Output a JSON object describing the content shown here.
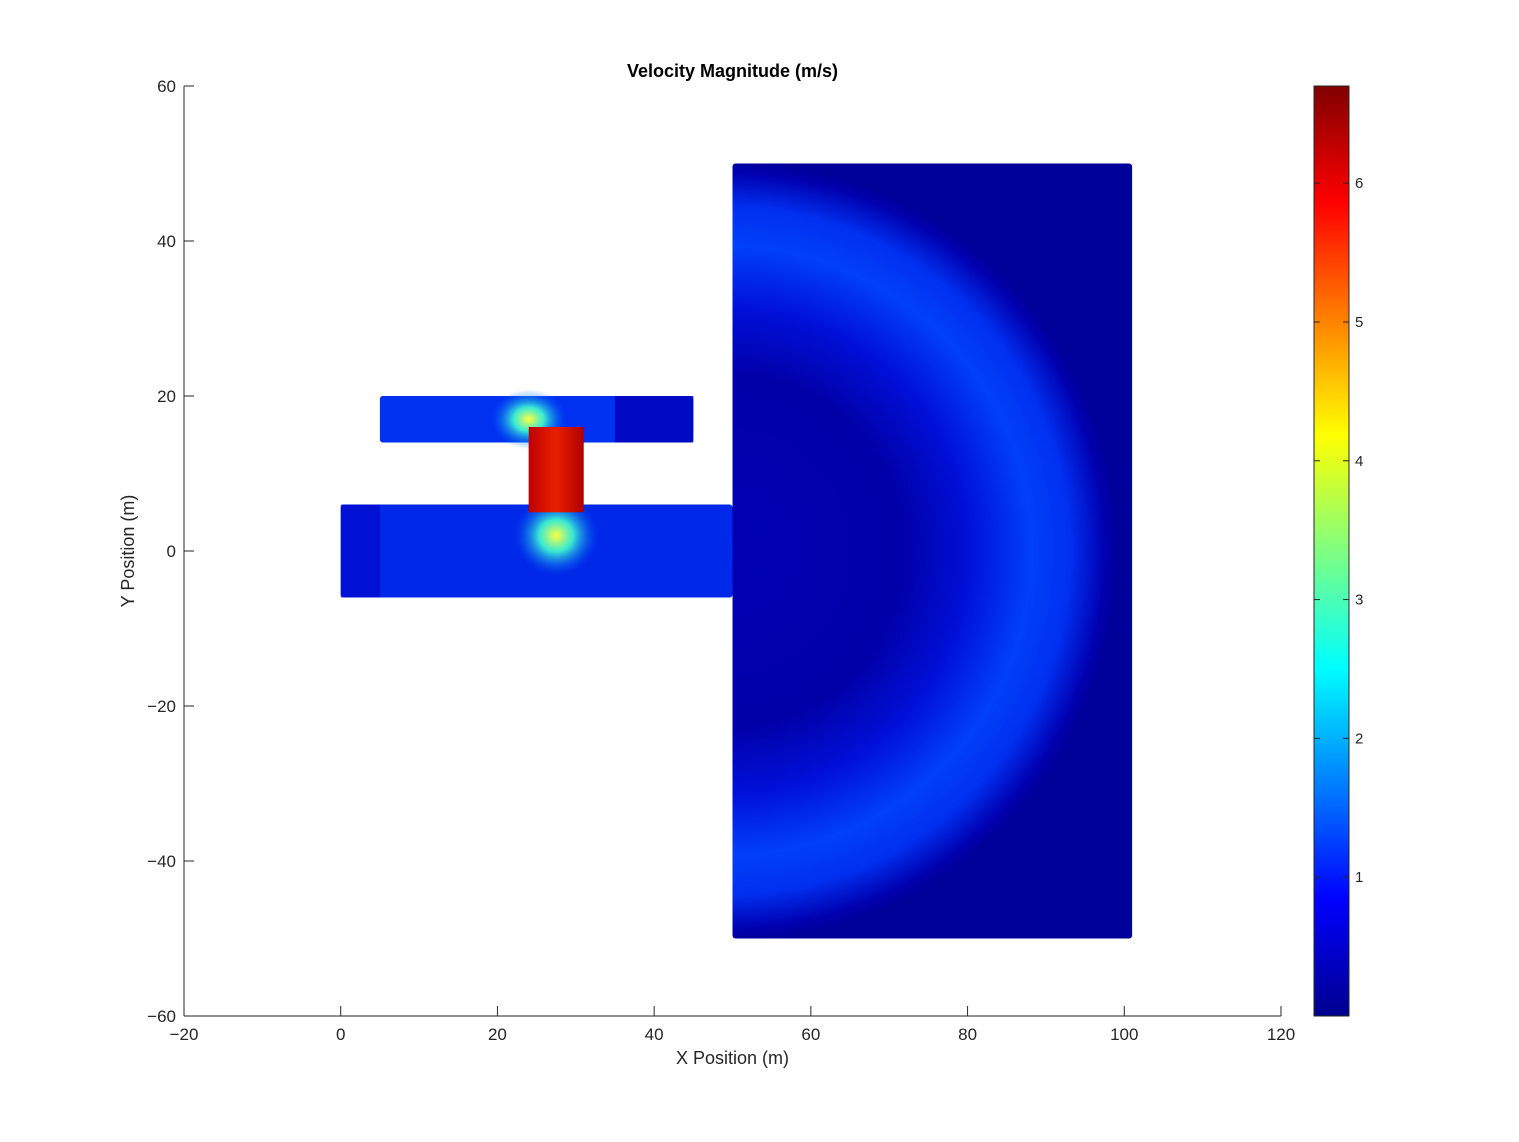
{
  "chart_data": {
    "type": "heatmap",
    "title": "Velocity Magnitude (m/s)",
    "xlabel": "X Position (m)",
    "ylabel": "Y Position (m)",
    "xlim": [
      -20,
      120
    ],
    "ylim": [
      -60,
      60
    ],
    "xticks": [
      -20,
      0,
      20,
      40,
      60,
      80,
      100,
      120
    ],
    "yticks": [
      -60,
      -40,
      -20,
      0,
      20,
      40,
      60
    ],
    "grid": false,
    "colormap": "jet",
    "colorbar": {
      "placement": "right",
      "range": [
        0,
        6.7
      ],
      "ticks": [
        1,
        2,
        3,
        4,
        5,
        6
      ]
    },
    "regions": [
      {
        "name": "upper channel",
        "x": [
          5,
          45
        ],
        "y": [
          14,
          20
        ],
        "typical_value": 0.9
      },
      {
        "name": "connector",
        "x": [
          24,
          31
        ],
        "y": [
          5,
          16
        ],
        "typical_value": 6.4
      },
      {
        "name": "lower channel",
        "x": [
          0,
          50
        ],
        "y": [
          -6,
          6
        ],
        "typical_value": 0.8
      },
      {
        "name": "basin",
        "x": [
          50,
          101
        ],
        "y": [
          -50,
          50
        ],
        "typical_value": 0.5
      }
    ]
  }
}
